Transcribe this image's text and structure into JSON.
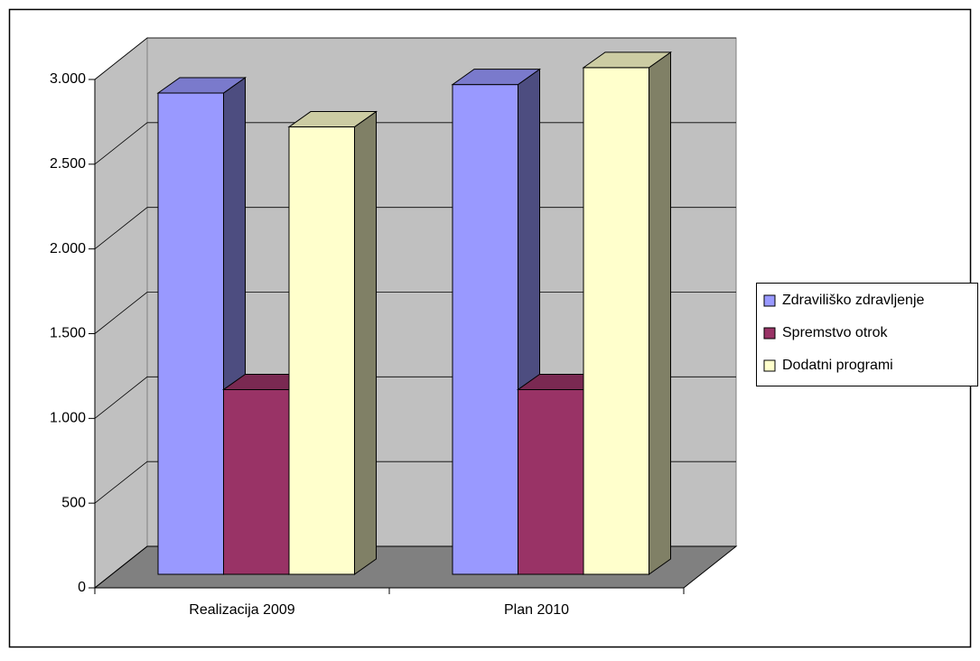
{
  "chart_data": {
    "type": "bar3d",
    "categories": [
      "Realizacija 2009",
      "Plan 2010"
    ],
    "series": [
      {
        "name": "Zdraviliško zdravljenje",
        "color": "#9999ff",
        "values": [
          2840,
          2890
        ]
      },
      {
        "name": "Spremstvo otrok",
        "color": "#993366",
        "values": [
          1090,
          1090
        ]
      },
      {
        "name": "Dodatni programi",
        "color": "#ffffcc",
        "values": [
          2640,
          2990
        ]
      }
    ],
    "ylim": [
      0,
      3000
    ],
    "yticks": [
      0,
      500,
      {
        "value": 1000,
        "label": "1.000"
      },
      {
        "value": 1500,
        "label": "1.500"
      },
      {
        "value": 2000,
        "label": "2.000"
      },
      {
        "value": 2500,
        "label": "2.500"
      },
      {
        "value": 3000,
        "label": "3.000"
      }
    ],
    "grid": true,
    "legend": "right"
  }
}
